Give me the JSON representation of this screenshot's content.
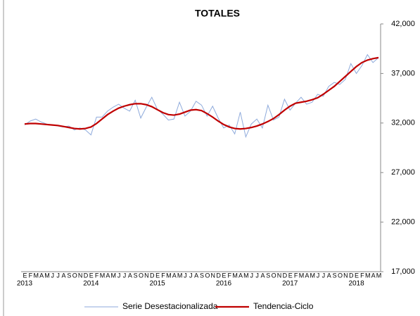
{
  "chart_data": {
    "type": "line",
    "title": "TOTALES",
    "categories": [
      "E",
      "F",
      "M",
      "A",
      "M",
      "J",
      "J",
      "A",
      "S",
      "O",
      "N",
      "D",
      "E",
      "F",
      "M",
      "A",
      "M",
      "J",
      "J",
      "A",
      "S",
      "O",
      "N",
      "D",
      "E",
      "F",
      "M",
      "A",
      "M",
      "J",
      "J",
      "A",
      "S",
      "O",
      "N",
      "D",
      "E",
      "F",
      "M",
      "A",
      "M",
      "J",
      "J",
      "A",
      "S",
      "O",
      "N",
      "D",
      "E",
      "F",
      "M",
      "A",
      "M",
      "J",
      "J",
      "A",
      "S",
      "O",
      "N",
      "D",
      "E",
      "F",
      "M",
      "A",
      "M"
    ],
    "year_labels": [
      "2013",
      "2014",
      "2015",
      "2016",
      "2017",
      "2018"
    ],
    "series": [
      {
        "name": "Serie Desestacionalizada",
        "color": "#8eaadb",
        "values": [
          31800,
          32200,
          32400,
          32100,
          31900,
          31800,
          31700,
          31600,
          31700,
          31300,
          31500,
          31300,
          30800,
          32600,
          32600,
          33200,
          33600,
          33900,
          33500,
          33200,
          34300,
          32500,
          33600,
          34600,
          33400,
          32900,
          32300,
          32400,
          34100,
          32700,
          33200,
          34200,
          33800,
          32700,
          33700,
          32500,
          31500,
          31800,
          30900,
          33100,
          30600,
          31900,
          32400,
          31500,
          33800,
          32300,
          32600,
          34400,
          33300,
          34000,
          34600,
          33900,
          34100,
          34900,
          34700,
          35700,
          36100,
          35900,
          36400,
          38000,
          37000,
          37800,
          38900,
          38100,
          38600
        ]
      },
      {
        "name": "Tendencia-Ciclo",
        "color": "#c00000",
        "values": [
          31900,
          31950,
          31950,
          31900,
          31850,
          31800,
          31750,
          31650,
          31550,
          31450,
          31400,
          31450,
          31600,
          31950,
          32400,
          32850,
          33200,
          33500,
          33700,
          33850,
          33950,
          33950,
          33850,
          33650,
          33350,
          33050,
          32850,
          32800,
          32900,
          33100,
          33300,
          33350,
          33250,
          32950,
          32600,
          32200,
          31850,
          31600,
          31450,
          31400,
          31450,
          31550,
          31700,
          31900,
          32150,
          32450,
          32850,
          33300,
          33700,
          34000,
          34100,
          34200,
          34350,
          34550,
          34900,
          35300,
          35700,
          36200,
          36700,
          37200,
          37700,
          38100,
          38350,
          38500,
          38600
        ]
      }
    ],
    "ylim": [
      17000,
      42000
    ],
    "yticks": [
      {
        "value": 17000,
        "label": "17,000"
      },
      {
        "value": 22000,
        "label": "22,000"
      },
      {
        "value": 27000,
        "label": "27,000"
      },
      {
        "value": 32000,
        "label": "32,000"
      },
      {
        "value": 37000,
        "label": "37,000"
      },
      {
        "value": 42000,
        "label": "42,000"
      }
    ],
    "legend": "bottom"
  }
}
